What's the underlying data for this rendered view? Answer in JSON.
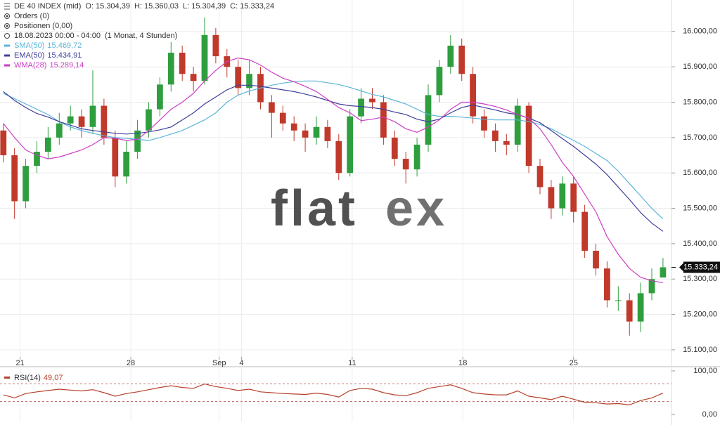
{
  "chart_data": [
    {
      "type": "candlestick",
      "instrument": "DE 40 INDEX (mid)",
      "ohlc_labels": [
        "O: 15.304,39",
        "H: 15.360,03",
        "L: 15.304,39",
        "C: 15.333,24"
      ],
      "info_lines": [
        "Orders (0)",
        "Positionen (0,00)",
        "18.08.2023 00:00 - 04:00",
        "(1 Monat, 4 Stunden)"
      ],
      "watermark": [
        "flat",
        "ex"
      ],
      "last_price_label": "15.333,24",
      "up_color": "#2e9e3e",
      "down_color": "#c0392b",
      "xlim": [
        -0.3,
        59.76
      ],
      "xticks": [
        {
          "value": 1.5,
          "label": "21"
        },
        {
          "value": 11.4,
          "label": "28"
        },
        {
          "value": 19.3,
          "label": "Sep"
        },
        {
          "value": 21.3,
          "label": "4"
        },
        {
          "value": 31.2,
          "label": "11"
        },
        {
          "value": 41.1,
          "label": "18"
        },
        {
          "value": 51.0,
          "label": "25"
        }
      ],
      "ylim": [
        15086,
        16089
      ],
      "yticks": [
        {
          "value": 16000,
          "label": "16.000,00"
        },
        {
          "value": 15900,
          "label": "15.900,00"
        },
        {
          "value": 15800,
          "label": "15.800,00"
        },
        {
          "value": 15700,
          "label": "15.700,00"
        },
        {
          "value": 15600,
          "label": "15.600,00"
        },
        {
          "value": 15500,
          "label": "15.500,00"
        },
        {
          "value": 15400,
          "label": "15.400,00"
        },
        {
          "value": 15300,
          "label": "15.300,00"
        },
        {
          "value": 15200,
          "label": "15.200,00"
        },
        {
          "value": 15100,
          "label": "15.100,00"
        }
      ],
      "grid": true,
      "open": [
        15720,
        15650,
        15520,
        15620,
        15660,
        15700,
        15740,
        15760,
        15730,
        15790,
        15700,
        15590,
        15660,
        15720,
        15780,
        15850,
        15940,
        15880,
        15860,
        15990,
        15930,
        15900,
        15840,
        15880,
        15800,
        15770,
        15740,
        15720,
        15700,
        15730,
        15690,
        15600,
        15760,
        15810,
        15800,
        15700,
        15640,
        15610,
        15680,
        15820,
        15900,
        15960,
        15880,
        15760,
        15720,
        15690,
        15680,
        15790,
        15620,
        15560,
        15500,
        15570,
        15490,
        15380,
        15330,
        15240,
        15240,
        15180,
        15260,
        15304.39
      ],
      "high": [
        15740,
        15670,
        15640,
        15690,
        15730,
        15770,
        15790,
        15780,
        15890,
        15810,
        15720,
        15690,
        15750,
        15800,
        15870,
        15970,
        15960,
        15900,
        16040,
        16010,
        15950,
        15920,
        15920,
        15900,
        15820,
        15790,
        15760,
        15740,
        15760,
        15750,
        15710,
        15780,
        15840,
        15840,
        15820,
        15720,
        15660,
        15700,
        15850,
        15920,
        15990,
        15980,
        15900,
        15780,
        15740,
        15710,
        15810,
        15800,
        15640,
        15580,
        15590,
        15590,
        15510,
        15400,
        15350,
        15280,
        15260,
        15290,
        15330,
        15360.03
      ],
      "low": [
        15630,
        15470,
        15500,
        15600,
        15640,
        15680,
        15720,
        15700,
        15710,
        15680,
        15560,
        15570,
        15640,
        15700,
        15760,
        15830,
        15860,
        15830,
        15850,
        15910,
        15870,
        15820,
        15820,
        15780,
        15700,
        15720,
        15690,
        15660,
        15680,
        15670,
        15580,
        15590,
        15740,
        15780,
        15680,
        15620,
        15570,
        15590,
        15660,
        15800,
        15880,
        15860,
        15740,
        15700,
        15660,
        15650,
        15660,
        15600,
        15540,
        15470,
        15480,
        15460,
        15360,
        15310,
        15220,
        15210,
        15140,
        15150,
        15240,
        15304.39
      ],
      "close": [
        15650,
        15520,
        15620,
        15660,
        15700,
        15740,
        15760,
        15730,
        15790,
        15700,
        15590,
        15660,
        15720,
        15780,
        15850,
        15940,
        15880,
        15860,
        15990,
        15930,
        15900,
        15840,
        15880,
        15800,
        15770,
        15740,
        15720,
        15700,
        15730,
        15690,
        15600,
        15760,
        15810,
        15800,
        15700,
        15640,
        15610,
        15680,
        15820,
        15900,
        15960,
        15880,
        15760,
        15720,
        15690,
        15680,
        15790,
        15620,
        15560,
        15500,
        15570,
        15490,
        15380,
        15330,
        15240,
        15240,
        15180,
        15260,
        15300,
        15333.24
      ],
      "series": [
        {
          "name": "SMA(50)",
          "value_label": "15.469,72",
          "color": "#5bb5d9",
          "values": [
            15825,
            15810,
            15795,
            15780,
            15765,
            15745,
            15730,
            15720,
            15712,
            15705,
            15700,
            15698,
            15695,
            15692,
            15700,
            15710,
            15720,
            15735,
            15750,
            15770,
            15800,
            15820,
            15832,
            15840,
            15848,
            15854,
            15858,
            15860,
            15860,
            15855,
            15850,
            15842,
            15832,
            15822,
            15815,
            15805,
            15795,
            15780,
            15765,
            15760,
            15760,
            15758,
            15755,
            15752,
            15750,
            15750,
            15750,
            15745,
            15737,
            15725,
            15708,
            15692,
            15675,
            15655,
            15635,
            15605,
            15570,
            15535,
            15500,
            15470
          ]
        },
        {
          "name": "EMA(50)",
          "value_label": "15.434,91",
          "color": "#3f3f9c",
          "values": [
            15830,
            15805,
            15785,
            15768,
            15758,
            15745,
            15735,
            15725,
            15720,
            15716,
            15712,
            15710,
            15712,
            15716,
            15722,
            15730,
            15750,
            15770,
            15795,
            15815,
            15835,
            15848,
            15848,
            15845,
            15840,
            15835,
            15830,
            15823,
            15815,
            15805,
            15795,
            15790,
            15788,
            15785,
            15780,
            15772,
            15765,
            15752,
            15745,
            15752,
            15770,
            15785,
            15792,
            15785,
            15778,
            15770,
            15765,
            15755,
            15742,
            15720,
            15697,
            15675,
            15650,
            15625,
            15595,
            15560,
            15525,
            15488,
            15458,
            15435
          ]
        },
        {
          "name": "WMA(28)",
          "value_label": "15.289,14",
          "color": "#cc3fc4",
          "values": [
            15740,
            15700,
            15665,
            15650,
            15640,
            15645,
            15655,
            15665,
            15680,
            15700,
            15698,
            15692,
            15695,
            15720,
            15750,
            15780,
            15800,
            15825,
            15860,
            15890,
            15915,
            15925,
            15920,
            15905,
            15885,
            15868,
            15858,
            15845,
            15830,
            15808,
            15785,
            15770,
            15748,
            15752,
            15758,
            15745,
            15725,
            15715,
            15730,
            15750,
            15780,
            15800,
            15800,
            15795,
            15788,
            15778,
            15765,
            15755,
            15725,
            15680,
            15630,
            15590,
            15540,
            15490,
            15420,
            15370,
            15330,
            15305,
            15295,
            15290
          ]
        }
      ]
    },
    {
      "type": "line",
      "series": [
        {
          "name": "RSI(14)",
          "value_label": "49,07",
          "color": "#b5402a",
          "values": [
            45,
            38,
            48,
            52,
            55,
            58,
            56,
            54,
            57,
            50,
            42,
            48,
            52,
            57,
            62,
            66,
            62,
            60,
            70,
            64,
            60,
            55,
            58,
            52,
            50,
            48,
            47,
            46,
            49,
            46,
            40,
            55,
            60,
            58,
            50,
            45,
            43,
            50,
            60,
            64,
            68,
            60,
            50,
            47,
            45,
            45,
            54,
            42,
            38,
            34,
            42,
            35,
            28,
            27,
            24,
            25,
            22,
            32,
            38,
            49.07
          ]
        }
      ],
      "ylim": [
        0,
        100
      ],
      "yticks": [
        {
          "value": 100,
          "label": "100,00"
        },
        {
          "value": 0,
          "label": "0,00"
        }
      ],
      "levels": [
        70,
        30
      ]
    }
  ]
}
